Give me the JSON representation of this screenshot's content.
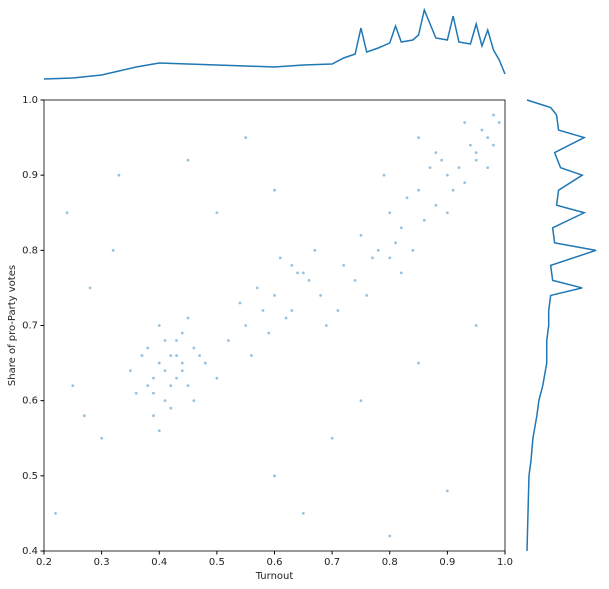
{
  "chart_data": [
    {
      "type": "line",
      "orientation": "horizontal",
      "color": "#1f77b4",
      "x": [
        0.2,
        0.25,
        0.3,
        0.33,
        0.36,
        0.4,
        0.45,
        0.5,
        0.55,
        0.6,
        0.65,
        0.7,
        0.72,
        0.74,
        0.75,
        0.76,
        0.78,
        0.8,
        0.81,
        0.82,
        0.84,
        0.85,
        0.86,
        0.88,
        0.9,
        0.91,
        0.92,
        0.94,
        0.95,
        0.96,
        0.97,
        0.98,
        0.99,
        1.0
      ],
      "values": [
        1,
        2,
        5,
        9,
        13,
        17,
        16,
        15,
        14,
        13,
        15,
        16,
        22,
        26,
        52,
        28,
        32,
        37,
        54,
        38,
        40,
        45,
        70,
        42,
        40,
        64,
        38,
        36,
        56,
        34,
        50,
        30,
        20,
        6
      ],
      "xlim": [
        0.2,
        1.0
      ],
      "ylim": [
        0,
        72
      ]
    },
    {
      "type": "scatter",
      "color": "#1f77b4",
      "x_label": "Turnout",
      "y_label": "Share of pro-Party votes",
      "x": [
        0.38,
        0.4,
        0.42,
        0.44,
        0.46,
        0.41,
        0.39,
        0.43,
        0.45,
        0.37,
        0.4,
        0.42,
        0.48,
        0.36,
        0.44,
        0.41,
        0.43,
        0.39,
        0.47,
        0.45,
        0.38,
        0.42,
        0.4,
        0.44,
        0.5,
        0.35,
        0.46,
        0.41,
        0.43,
        0.39,
        0.72,
        0.75,
        0.78,
        0.8,
        0.82,
        0.85,
        0.88,
        0.9,
        0.92,
        0.95,
        0.97,
        0.99,
        0.74,
        0.77,
        0.81,
        0.83,
        0.86,
        0.89,
        0.91,
        0.94,
        0.96,
        0.98,
        0.79,
        0.84,
        0.87,
        0.93,
        0.76,
        0.8,
        0.85,
        0.9,
        0.95,
        0.98,
        0.71,
        0.82,
        0.88,
        0.93,
        0.97,
        0.64,
        0.65,
        0.63,
        0.52,
        0.55,
        0.58,
        0.6,
        0.62,
        0.66,
        0.68,
        0.56,
        0.61,
        0.69,
        0.54,
        0.59,
        0.67,
        0.57,
        0.63,
        0.22,
        0.25,
        0.3,
        0.28,
        0.33,
        0.55,
        0.6,
        0.65,
        0.7,
        0.75,
        0.24,
        0.5,
        0.85,
        0.95,
        0.9,
        0.32,
        0.45,
        0.6,
        0.8,
        0.27
      ],
      "values": [
        0.62,
        0.65,
        0.66,
        0.64,
        0.67,
        0.6,
        0.63,
        0.68,
        0.62,
        0.66,
        0.7,
        0.59,
        0.65,
        0.61,
        0.69,
        0.64,
        0.63,
        0.58,
        0.66,
        0.71,
        0.67,
        0.62,
        0.56,
        0.65,
        0.63,
        0.64,
        0.6,
        0.68,
        0.66,
        0.61,
        0.78,
        0.82,
        0.8,
        0.85,
        0.83,
        0.88,
        0.86,
        0.9,
        0.91,
        0.93,
        0.95,
        0.97,
        0.76,
        0.79,
        0.81,
        0.87,
        0.84,
        0.92,
        0.88,
        0.94,
        0.96,
        0.98,
        0.9,
        0.8,
        0.91,
        0.89,
        0.74,
        0.79,
        0.95,
        0.85,
        0.92,
        0.94,
        0.72,
        0.77,
        0.93,
        0.97,
        0.91,
        0.77,
        0.77,
        0.78,
        0.68,
        0.7,
        0.72,
        0.74,
        0.71,
        0.76,
        0.74,
        0.66,
        0.79,
        0.7,
        0.73,
        0.69,
        0.8,
        0.75,
        0.72,
        0.45,
        0.62,
        0.55,
        0.75,
        0.9,
        0.95,
        0.5,
        0.45,
        0.55,
        0.6,
        0.85,
        0.85,
        0.65,
        0.7,
        0.48,
        0.8,
        0.92,
        0.88,
        0.42,
        0.58
      ],
      "xlim": [
        0.2,
        1.0
      ],
      "ylim": [
        0.4,
        1.0
      ],
      "xticks": [
        0.2,
        0.3,
        0.4,
        0.5,
        0.6,
        0.7,
        0.8,
        0.9,
        {
          "value": 1,
          "label": "1.0"
        }
      ],
      "yticks": [
        0.4,
        0.5,
        0.6,
        0.7,
        0.8,
        0.9,
        {
          "value": 1,
          "label": "1.0"
        }
      ]
    },
    {
      "type": "line",
      "orientation": "vertical",
      "color": "#1f77b4",
      "y": [
        0.4,
        0.45,
        0.5,
        0.52,
        0.55,
        0.58,
        0.6,
        0.62,
        0.65,
        0.68,
        0.7,
        0.72,
        0.74,
        0.75,
        0.76,
        0.78,
        0.8,
        0.81,
        0.83,
        0.85,
        0.86,
        0.88,
        0.9,
        0.91,
        0.93,
        0.95,
        0.96,
        0.98,
        0.99,
        1.0
      ],
      "values": [
        0,
        1,
        2,
        4,
        6,
        10,
        12,
        16,
        20,
        20,
        22,
        22,
        24,
        56,
        26,
        24,
        70,
        28,
        26,
        58,
        30,
        32,
        56,
        34,
        28,
        58,
        32,
        30,
        24,
        0
      ],
      "ylim": [
        0.4,
        1.0
      ],
      "xlim": [
        0,
        72
      ]
    }
  ]
}
